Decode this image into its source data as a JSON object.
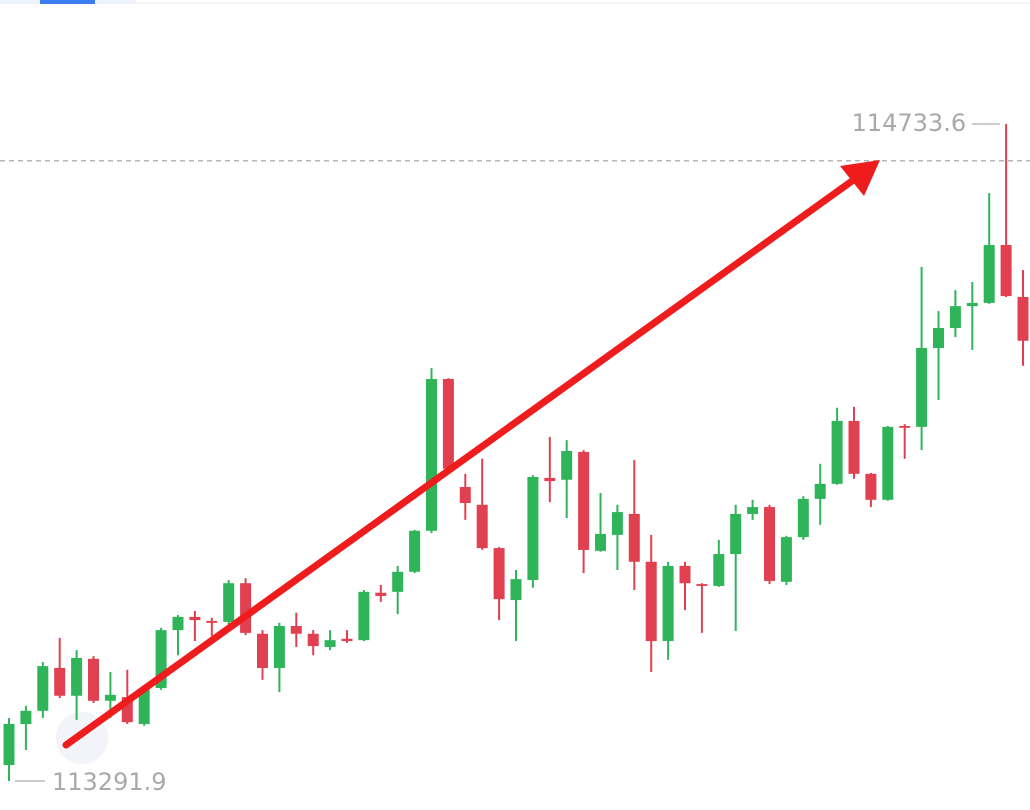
{
  "chart_data": {
    "type": "candlestick",
    "ylim": [
      113228.3,
      115005.7
    ],
    "up_color": "#2fb45a",
    "down_color": "#e0404f",
    "price_line": 114653,
    "series": {
      "open": [
        113327,
        113417,
        113446,
        113540,
        113479,
        113560,
        113468,
        113476,
        113417,
        113496,
        113623,
        113652,
        113643,
        113641,
        113726,
        113615,
        113540,
        113632,
        113615,
        113586,
        113604,
        113601,
        113705,
        113707,
        113751,
        113841,
        114174,
        113937,
        113898,
        113803,
        113689,
        113733,
        113957,
        113953,
        114014,
        113797,
        113832,
        113878,
        113773,
        113599,
        113764,
        113724,
        113720,
        113790,
        113878,
        113893,
        113729,
        113827,
        113911,
        113944,
        114082,
        113966,
        113909,
        114071,
        114069,
        114242,
        114286,
        114334,
        114341,
        114468,
        114354
      ],
      "high": [
        113430,
        113457,
        113553,
        113606,
        113579,
        113566,
        113531,
        113536,
        113496,
        113628,
        113656,
        113665,
        113650,
        113733,
        113737,
        113623,
        113639,
        113661,
        113623,
        113623,
        113623,
        113711,
        113722,
        113764,
        113843,
        114198,
        114176,
        113966,
        113999,
        113805,
        113755,
        113963,
        114047,
        114040,
        114018,
        113924,
        113898,
        113996,
        113832,
        113773,
        113773,
        113726,
        113821,
        113898,
        113909,
        113898,
        113830,
        113917,
        113988,
        114111,
        114113,
        113968,
        114071,
        114075,
        114420,
        114323,
        114369,
        114387,
        114582,
        114733.6,
        114413
      ],
      "low": [
        113291.9,
        113360,
        113430,
        113474,
        113426,
        113463,
        113430,
        113417,
        113413,
        113492,
        113568,
        113599,
        113610,
        113623,
        113612,
        113514,
        113487,
        113586,
        113568,
        113579,
        113595,
        113599,
        113685,
        113658,
        113748,
        113836,
        113968,
        113865,
        113799,
        113645,
        113599,
        113716,
        113904,
        113869,
        113748,
        113795,
        113755,
        113711,
        113531,
        113558,
        113667,
        113617,
        113718,
        113621,
        113865,
        113724,
        113722,
        113821,
        113854,
        113942,
        113955,
        113893,
        113907,
        113999,
        114018,
        114128,
        114266,
        114238,
        114339,
        114354,
        114203
      ],
      "close": [
        113417,
        113446,
        113544,
        113479,
        113562,
        113468,
        113481,
        113421,
        113492,
        113623,
        113652,
        113645,
        113639,
        113726,
        113617,
        113540,
        113632,
        113615,
        113588,
        113601,
        113599,
        113707,
        113698,
        113751,
        113841,
        114174,
        113977,
        113902,
        113803,
        113691,
        113735,
        113959,
        113950,
        114016,
        113799,
        113834,
        113882,
        113773,
        113599,
        113764,
        113726,
        113720,
        113790,
        113878,
        113893,
        113731,
        113827,
        113911,
        113944,
        114082,
        113966,
        113909,
        114069,
        114067,
        114242,
        114286,
        114334,
        114341,
        114468,
        114356,
        114258
      ]
    }
  }
}
